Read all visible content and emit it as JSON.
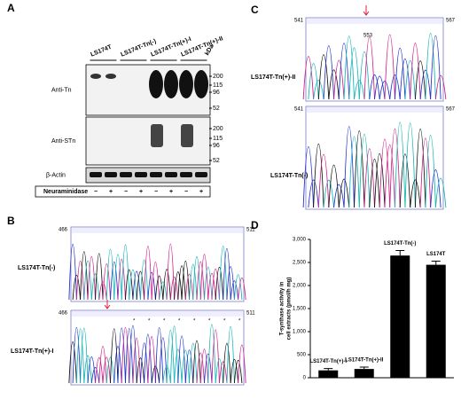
{
  "panel_a": {
    "label": "A",
    "lanes": [
      "LS174T",
      "LS174T-Tn(-)",
      "LS174T-Tn(+)-I",
      "LS174T-Tn(+)-II"
    ],
    "unit": "kDa",
    "blots": [
      {
        "name": "Anti-Tn",
        "markers": [
          200,
          115,
          96,
          52
        ]
      },
      {
        "name": "Anti-STn",
        "markers": [
          200,
          115,
          96,
          52
        ]
      },
      {
        "name": "β-Actin"
      }
    ],
    "treatment": "Neuraminidase",
    "signs": [
      "−",
      "+",
      "−",
      "+",
      "−",
      "+",
      "−",
      "+"
    ]
  },
  "panel_b": {
    "label": "B",
    "traces": [
      {
        "name": "LS174T-Tn(-)",
        "start": 466,
        "end": 511
      },
      {
        "name": "LS174T-Tn(+)-I",
        "start": 466,
        "end": 511
      }
    ]
  },
  "panel_c": {
    "label": "C",
    "traces": [
      {
        "name": "LS174T-Tn(+)-II",
        "start": 541,
        "end": 567,
        "site": 553
      },
      {
        "name": "LS174T-Tn(-)",
        "start": 541,
        "end": 567
      }
    ]
  },
  "chart_data": {
    "type": "bar",
    "label": "D",
    "y_label": [
      "T-synthase activity in",
      "cell extracts (pmol/h mg)"
    ],
    "categories": [
      "LS174T-Tn(+)-I",
      "LS174T-Tn(+)-II",
      "LS174T-Tn(-)",
      "LS174T"
    ],
    "values": [
      160,
      190,
      2650,
      2450
    ],
    "errors": [
      40,
      40,
      110,
      80
    ],
    "color": "#000000",
    "ylim": [
      0,
      3000
    ],
    "yticks": [
      0,
      500,
      {
        "value": 1000,
        "label": "1,000"
      },
      {
        "value": 1500,
        "label": "1,500"
      },
      {
        "value": 2000,
        "label": "2,000"
      },
      {
        "value": 2500,
        "label": "2,500"
      },
      {
        "value": 3000,
        "label": "3,000"
      }
    ]
  }
}
